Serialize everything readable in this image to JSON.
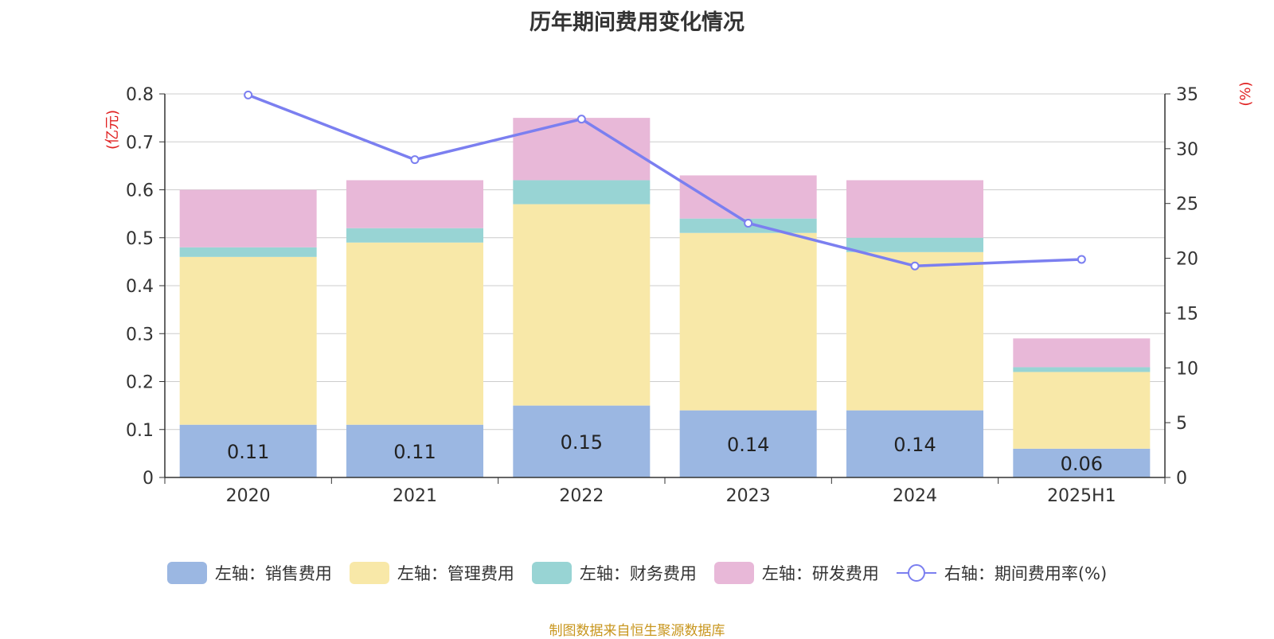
{
  "title": "历年期间费用变化情况",
  "source": "制图数据来自恒生聚源数据库",
  "chart_data": {
    "type": "bar",
    "stacked": true,
    "categories": [
      "2020",
      "2021",
      "2022",
      "2023",
      "2024",
      "2025H1"
    ],
    "series": [
      {
        "name": "左轴：销售费用",
        "axis": "left",
        "color": "#9bb7e2",
        "values": [
          0.11,
          0.11,
          0.15,
          0.14,
          0.14,
          0.06
        ]
      },
      {
        "name": "左轴：管理费用",
        "axis": "left",
        "color": "#f8e8a8",
        "values": [
          0.35,
          0.38,
          0.42,
          0.37,
          0.33,
          0.16
        ]
      },
      {
        "name": "左轴：财务费用",
        "axis": "left",
        "color": "#98d4d4",
        "values": [
          0.02,
          0.03,
          0.05,
          0.03,
          0.03,
          0.01
        ]
      },
      {
        "name": "左轴：研发费用",
        "axis": "left",
        "color": "#e8b8d8",
        "values": [
          0.12,
          0.1,
          0.13,
          0.09,
          0.12,
          0.06
        ]
      }
    ],
    "line_series": [
      {
        "name": "右轴：期间费用率(%)",
        "axis": "right",
        "type": "line",
        "color": "#7b7ff0",
        "values": [
          34.9,
          29.0,
          32.7,
          23.2,
          19.3,
          19.9
        ]
      }
    ],
    "data_labels": [
      "0.11",
      "0.11",
      "0.15",
      "0.14",
      "0.14",
      "0.06"
    ],
    "y_left": {
      "label": "(亿元)",
      "min": 0,
      "max": 0.8,
      "ticks": [
        "0",
        "0.1",
        "0.2",
        "0.3",
        "0.4",
        "0.5",
        "0.6",
        "0.7",
        "0.8"
      ]
    },
    "y_right": {
      "label": "(%)",
      "min": 0,
      "max": 35,
      "ticks": [
        "0",
        "5",
        "10",
        "15",
        "20",
        "25",
        "30",
        "35"
      ]
    },
    "grid": true,
    "legend_position": "bottom"
  }
}
